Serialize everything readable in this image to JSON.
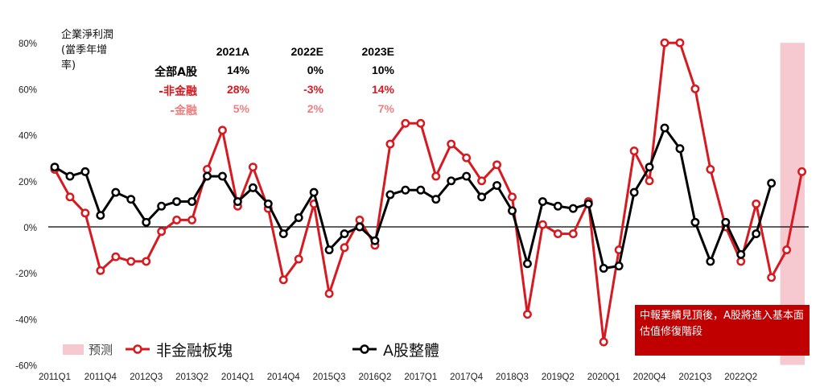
{
  "chart_data": {
    "type": "line",
    "y_title": "企業淨利潤\n(當季年增\n率)",
    "ylim": [
      -60,
      80
    ],
    "y_ticks": [
      "80%",
      "60%",
      "40%",
      "20%",
      "0%",
      "-20%",
      "-40%",
      "-60%"
    ],
    "x_tick_labels": [
      "2011Q1",
      "2011Q4",
      "2012Q3",
      "2013Q2",
      "2014Q1",
      "2014Q4",
      "2015Q3",
      "2016Q2",
      "2017Q1",
      "2017Q4",
      "2018Q3",
      "2019Q2",
      "2020Q1",
      "2020Q4",
      "2021Q3",
      "2022Q2"
    ],
    "series": [
      {
        "name": "非金融板塊",
        "color": "#d71920",
        "values": [
          25,
          13,
          6,
          -19,
          -13,
          -15,
          -15,
          -2,
          3,
          3,
          25,
          42,
          9,
          26,
          8,
          -23,
          -14,
          10,
          -29,
          -9,
          3,
          -8,
          36,
          45,
          45,
          22,
          36,
          30,
          20,
          27,
          13,
          -38,
          1,
          -3,
          -3,
          11,
          -50,
          -10,
          33,
          20,
          80,
          80,
          60,
          25,
          0,
          -15,
          10,
          -22,
          -10,
          24
        ]
      },
      {
        "name": "A股整體",
        "color": "#000000",
        "values": [
          26,
          22,
          24,
          5,
          15,
          12,
          2,
          9,
          11,
          11,
          22,
          22,
          11,
          17,
          10,
          -3,
          4,
          15,
          -10,
          -3,
          0,
          -6,
          14,
          16,
          16,
          12,
          20,
          22,
          13,
          18,
          7,
          -16,
          11,
          9,
          8,
          10,
          -18,
          -17,
          15,
          26,
          43,
          34,
          2,
          -15,
          2,
          -12,
          -3,
          19
        ]
      }
    ],
    "forecast_band_label": "预测",
    "forecast_band_start_index": 48,
    "legend": [
      {
        "label": "预测",
        "kind": "band"
      },
      {
        "label": "非金融板塊",
        "kind": "line",
        "color": "#d71920"
      },
      {
        "label": "A股整體",
        "kind": "line",
        "color": "#000000"
      }
    ]
  },
  "table": {
    "headers": [
      "2021A",
      "2022E",
      "2023E"
    ],
    "rows": [
      {
        "label": "全部A股",
        "values": [
          "14%",
          "0%",
          "10%"
        ],
        "color": "#000000"
      },
      {
        "label": "-非金融",
        "values": [
          "28%",
          "-3%",
          "14%"
        ],
        "color": "#d71920"
      },
      {
        "label": "-金融",
        "values": [
          "5%",
          "2%",
          "7%"
        ],
        "color": "#f08080"
      }
    ]
  },
  "annotation": "中報業績見頂後，A股將進入基本面估值修復階段"
}
